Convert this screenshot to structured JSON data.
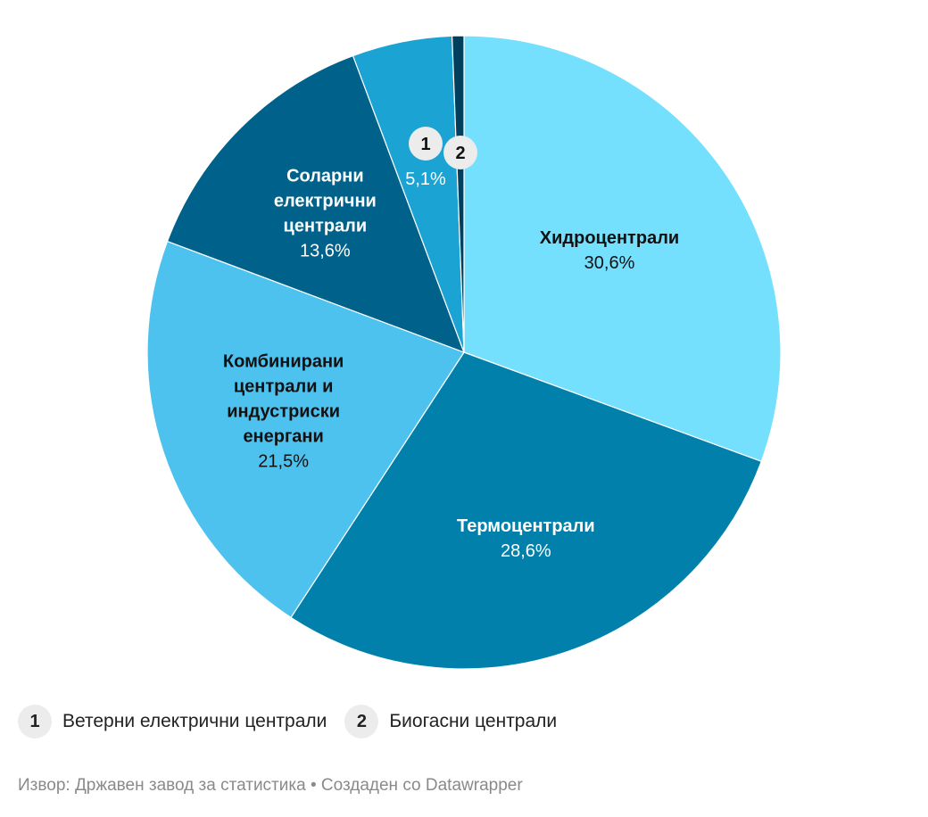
{
  "chart_data": {
    "type": "pie",
    "title": "",
    "start_angle_deg": 0,
    "slices": [
      {
        "label": "Хидроцентрали",
        "value": 30.6,
        "value_label": "30,6%",
        "color": "#74e0fe",
        "label_color": "#111111"
      },
      {
        "label": "Термоцентрали",
        "value": 28.6,
        "value_label": "28,6%",
        "color": "#0080ab",
        "label_color": "#ffffff"
      },
      {
        "label": "Комбинирани централи и индустриски енергани",
        "value": 21.5,
        "value_label": "21,5%",
        "color": "#4ec2ef",
        "label_color": "#111111"
      },
      {
        "label": "Соларни електрични централи",
        "value": 13.6,
        "value_label": "13,6%",
        "color": "#00628b",
        "label_color": "#ffffff"
      },
      {
        "label": "Ветерни електрични централи",
        "value": 5.1,
        "value_label": "5,1%",
        "key": "1",
        "color": "#1aa3d3",
        "label_color": "#ffffff"
      },
      {
        "label": "Биогасни централи",
        "value": 0.6,
        "key": "2",
        "color": "#003f5e",
        "label_color": "#ffffff"
      }
    ]
  },
  "legend": [
    {
      "key": "1",
      "label": "Ветерни електрични централи"
    },
    {
      "key": "2",
      "label": "Биогасни централи"
    }
  ],
  "footer": {
    "text": "Извор: Државен завод за статистика • Создаден со Datawrapper"
  }
}
